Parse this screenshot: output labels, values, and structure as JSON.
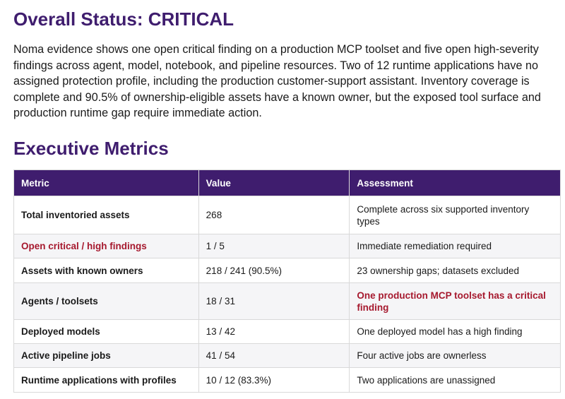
{
  "status": {
    "heading": "Overall Status: CRITICAL",
    "summary": "Noma evidence shows one open critical finding on a production MCP toolset and five open high-severity findings across agent, model, notebook, and pipeline resources. Two of 12 runtime applications have no assigned protection profile, including the production customer-support assistant. Inventory coverage is complete and 90.5% of ownership-eligible assets have a known owner, but the exposed tool surface and production runtime gap require immediate action."
  },
  "metrics": {
    "heading": "Executive Metrics",
    "columns": [
      "Metric",
      "Value",
      "Assessment"
    ],
    "rows": [
      {
        "metric": "Total inventoried assets",
        "value": "268",
        "assessment": "Complete across six supported inventory types"
      },
      {
        "metric": "Open critical / high findings",
        "value": "1 / 5",
        "assessment": "Immediate remediation required"
      },
      {
        "metric": "Assets with known owners",
        "value": "218 / 241 (90.5%)",
        "assessment": "23 ownership gaps; datasets excluded"
      },
      {
        "metric": "Agents / toolsets",
        "value": "18 / 31",
        "assessment": "One production MCP toolset has a critical finding"
      },
      {
        "metric": "Deployed models",
        "value": "13 / 42",
        "assessment": "One deployed model has a high finding"
      },
      {
        "metric": "Active pipeline jobs",
        "value": "41 / 54",
        "assessment": "Four active jobs are ownerless"
      },
      {
        "metric": "Runtime applications with profiles",
        "value": "10 / 12 (83.3%)",
        "assessment": "Two applications are unassigned"
      }
    ]
  },
  "colors": {
    "heading": "#3f1d6e",
    "header_bg": "#3f1d6e",
    "alert": "#a6192e",
    "stripe": "#f5f5f7"
  }
}
